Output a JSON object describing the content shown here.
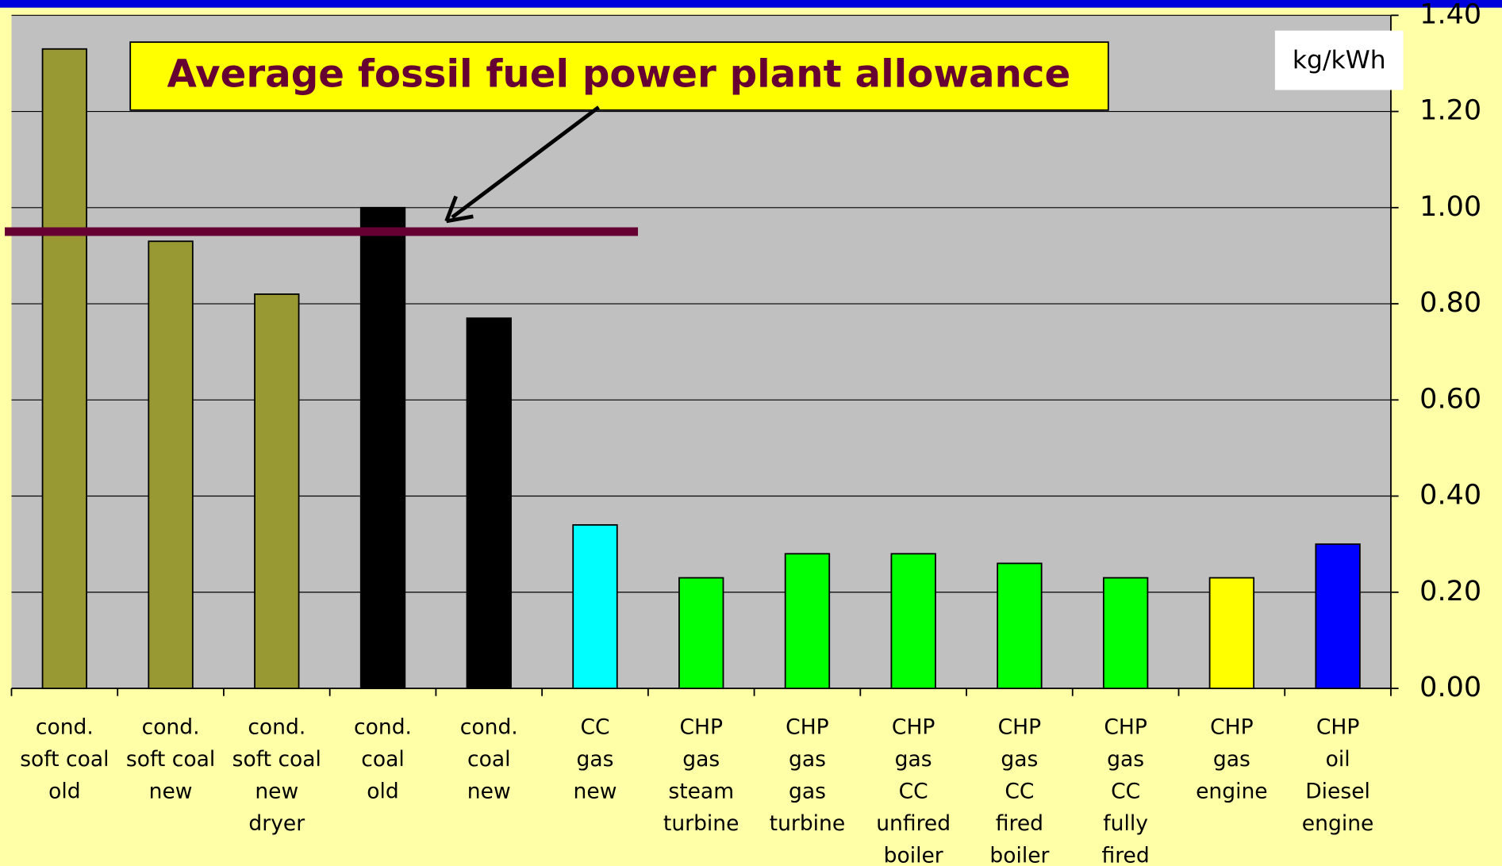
{
  "chart_data": {
    "type": "bar",
    "unit_label": "kg/kWh",
    "categories": [
      [
        "cond.",
        "soft coal",
        "old"
      ],
      [
        "cond.",
        "soft coal",
        "new"
      ],
      [
        "cond.",
        "soft coal",
        "new",
        "dryer"
      ],
      [
        "cond.",
        "coal",
        "old"
      ],
      [
        "cond.",
        "coal",
        "new"
      ],
      [
        "CC",
        "gas",
        "new"
      ],
      [
        "CHP",
        "gas",
        "steam",
        "turbine"
      ],
      [
        "CHP",
        "gas",
        "gas",
        "turbine"
      ],
      [
        "CHP",
        "gas",
        "CC",
        "unfired",
        "boiler"
      ],
      [
        "CHP",
        "gas",
        "CC",
        "fired",
        "boiler"
      ],
      [
        "CHP",
        "gas",
        "CC",
        "fully",
        "fired"
      ],
      [
        "CHP",
        "gas",
        "engine"
      ],
      [
        "CHP",
        "oil",
        "Diesel",
        "engine"
      ]
    ],
    "values": [
      1.33,
      0.93,
      0.82,
      1.0,
      0.77,
      0.34,
      0.23,
      0.28,
      0.28,
      0.26,
      0.23,
      0.23,
      0.3
    ],
    "colors": [
      "#999933",
      "#999933",
      "#999933",
      "#000000",
      "#000000",
      "#00ffff",
      "#00ff00",
      "#00ff00",
      "#00ff00",
      "#00ff00",
      "#00ff00",
      "#ffff00",
      "#0000ff"
    ],
    "ylim": [
      0,
      1.4
    ],
    "yticks": [
      {
        "value": 0,
        "label": "0.00"
      },
      {
        "value": 0.2,
        "label": "0.20"
      },
      {
        "value": 0.4,
        "label": "0.40"
      },
      {
        "value": 0.6,
        "label": "0.60"
      },
      {
        "value": 0.8,
        "label": "0.80"
      },
      {
        "value": 1.0,
        "label": "1.00"
      },
      {
        "value": 1.2,
        "label": "1.20"
      },
      {
        "value": 1.4,
        "label": "1.40"
      }
    ],
    "grid": true,
    "reference_line": {
      "value": 0.95,
      "label": "Average fossil fuel power plant allowance",
      "color": "#660033"
    }
  }
}
